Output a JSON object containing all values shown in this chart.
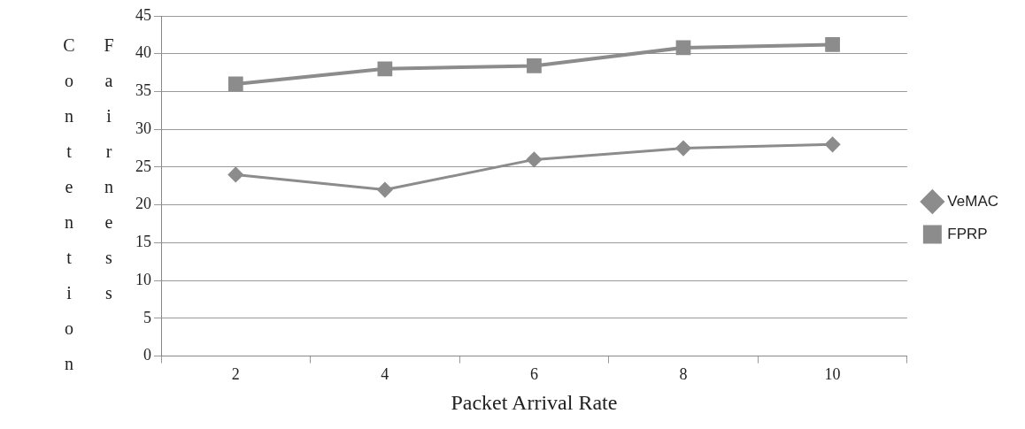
{
  "chart_data": {
    "type": "line",
    "xlabel": "Packet Arrival Rate",
    "ylabel": "Contention Fairness",
    "categories": [
      "2",
      "4",
      "6",
      "8",
      "10"
    ],
    "series": [
      {
        "name": "VeMAC",
        "color": "#8c8c8c",
        "marker": "diamond",
        "values": [
          24,
          22,
          26,
          27.5,
          28
        ]
      },
      {
        "name": "FPRP",
        "color": "#8c8c8c",
        "marker": "square",
        "values": [
          36,
          38,
          38.4,
          40.8,
          41.2
        ]
      }
    ],
    "ylim": [
      0,
      45
    ],
    "yticks": [
      0,
      5,
      10,
      15,
      20,
      25,
      30,
      35,
      40,
      45
    ],
    "grid": "y",
    "legend": "right"
  }
}
